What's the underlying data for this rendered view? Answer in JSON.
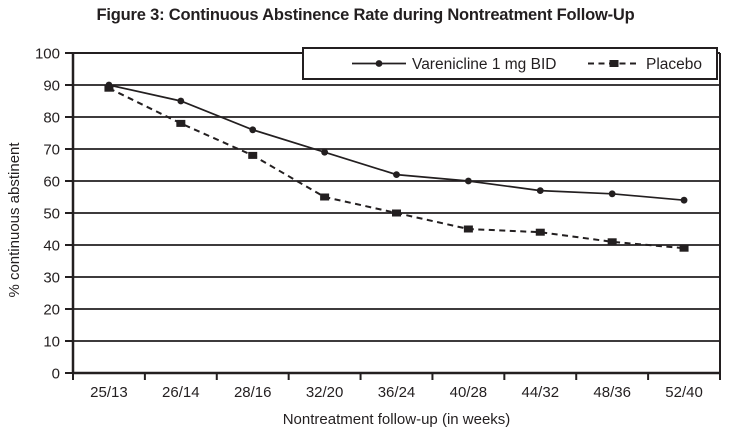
{
  "chart_data": {
    "type": "line",
    "title": "Figure 3: Continuous Abstinence Rate during Nontreatment Follow-Up",
    "xlabel": "Nontreatment follow-up (in weeks)",
    "ylabel": "% continuous abstinent",
    "categories": [
      "25/13",
      "26/14",
      "28/16",
      "32/20",
      "36/24",
      "40/28",
      "44/32",
      "48/36",
      "52/40"
    ],
    "series": [
      {
        "name": "Varenicline 1 mg BID",
        "marker": "circle",
        "line_style": "solid",
        "values": [
          90,
          85,
          76,
          69,
          62,
          60,
          57,
          56,
          54
        ]
      },
      {
        "name": "Placebo",
        "marker": "square",
        "line_style": "dashed",
        "values": [
          89,
          78,
          68,
          55,
          50,
          45,
          44,
          41,
          39
        ]
      }
    ],
    "ylim": [
      0,
      100
    ],
    "ytick_step": 10,
    "grid": "horizontal",
    "legend_position": "top-right-inside",
    "ink_color": "#231f20",
    "background_color": "#ffffff"
  }
}
